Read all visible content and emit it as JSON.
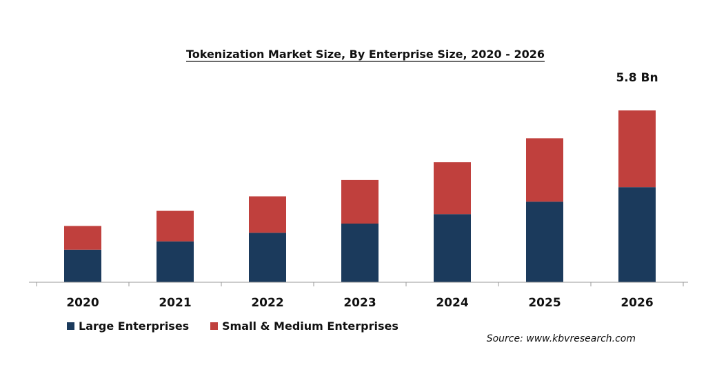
{
  "chart_data": {
    "type": "bar",
    "stacked": true,
    "title": "Tokenization Market Size, By Enterprise  Size, 2020 - 2026",
    "categories": [
      "2020",
      "2021",
      "2022",
      "2023",
      "2024",
      "2025",
      "2026"
    ],
    "series": [
      {
        "name": "Large Enterprises",
        "color": "#1b3a5c",
        "values": [
          1.1,
          1.38,
          1.67,
          1.98,
          2.3,
          2.72,
          3.21
        ]
      },
      {
        "name": "Small & Medium Enterprises",
        "color": "#c0403d",
        "values": [
          0.8,
          1.03,
          1.23,
          1.47,
          1.75,
          2.14,
          2.59
        ]
      }
    ],
    "data_labels": [
      {
        "category": "2026",
        "text": "5.8 Bn"
      }
    ],
    "ylim": [
      0,
      5.8
    ],
    "grid": false,
    "legend": "bottom-left",
    "source": "Source: www.kbvresearch.com"
  }
}
